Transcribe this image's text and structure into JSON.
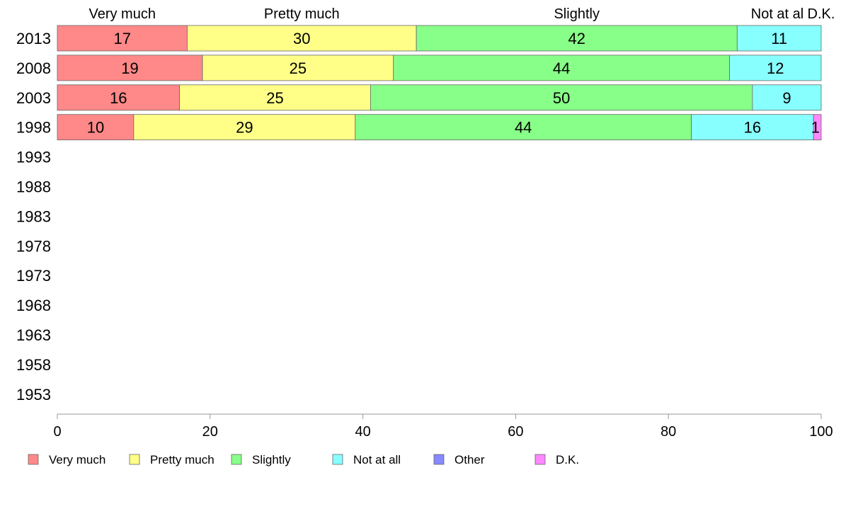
{
  "chart_data": {
    "type": "bar",
    "orientation": "horizontal",
    "stacked": true,
    "categories": [
      "2013",
      "2008",
      "2003",
      "1998",
      "1993",
      "1988",
      "1983",
      "1978",
      "1973",
      "1968",
      "1963",
      "1958",
      "1953"
    ],
    "series": [
      {
        "name": "Very much",
        "header": "Very much",
        "color": "#ff8888",
        "values": [
          17,
          19,
          16,
          10,
          null,
          null,
          null,
          null,
          null,
          null,
          null,
          null,
          null
        ]
      },
      {
        "name": "Pretty much",
        "header": "Pretty much",
        "color": "#ffff88",
        "values": [
          30,
          25,
          25,
          29,
          null,
          null,
          null,
          null,
          null,
          null,
          null,
          null,
          null
        ]
      },
      {
        "name": "Slightly",
        "header": "Slightly",
        "color": "#88ff88",
        "values": [
          42,
          44,
          50,
          44,
          null,
          null,
          null,
          null,
          null,
          null,
          null,
          null,
          null
        ]
      },
      {
        "name": "Not at all",
        "header": "Not at al",
        "color": "#88ffff",
        "values": [
          11,
          12,
          9,
          16,
          null,
          null,
          null,
          null,
          null,
          null,
          null,
          null,
          null
        ]
      },
      {
        "name": "Other",
        "header": "",
        "color": "#8888ff",
        "values": [
          0,
          0,
          0,
          0,
          null,
          null,
          null,
          null,
          null,
          null,
          null,
          null,
          null
        ]
      },
      {
        "name": "D.K.",
        "header": "D.K.",
        "color": "#ff88ff",
        "values": [
          0,
          0,
          0,
          1,
          null,
          null,
          null,
          null,
          null,
          null,
          null,
          null,
          null
        ]
      }
    ],
    "xlim": [
      0,
      100
    ],
    "xticks": [
      0,
      20,
      40,
      60,
      80,
      100
    ],
    "title": "",
    "xlabel": "",
    "ylabel": "",
    "grid": false,
    "legend_position": "bottom"
  }
}
